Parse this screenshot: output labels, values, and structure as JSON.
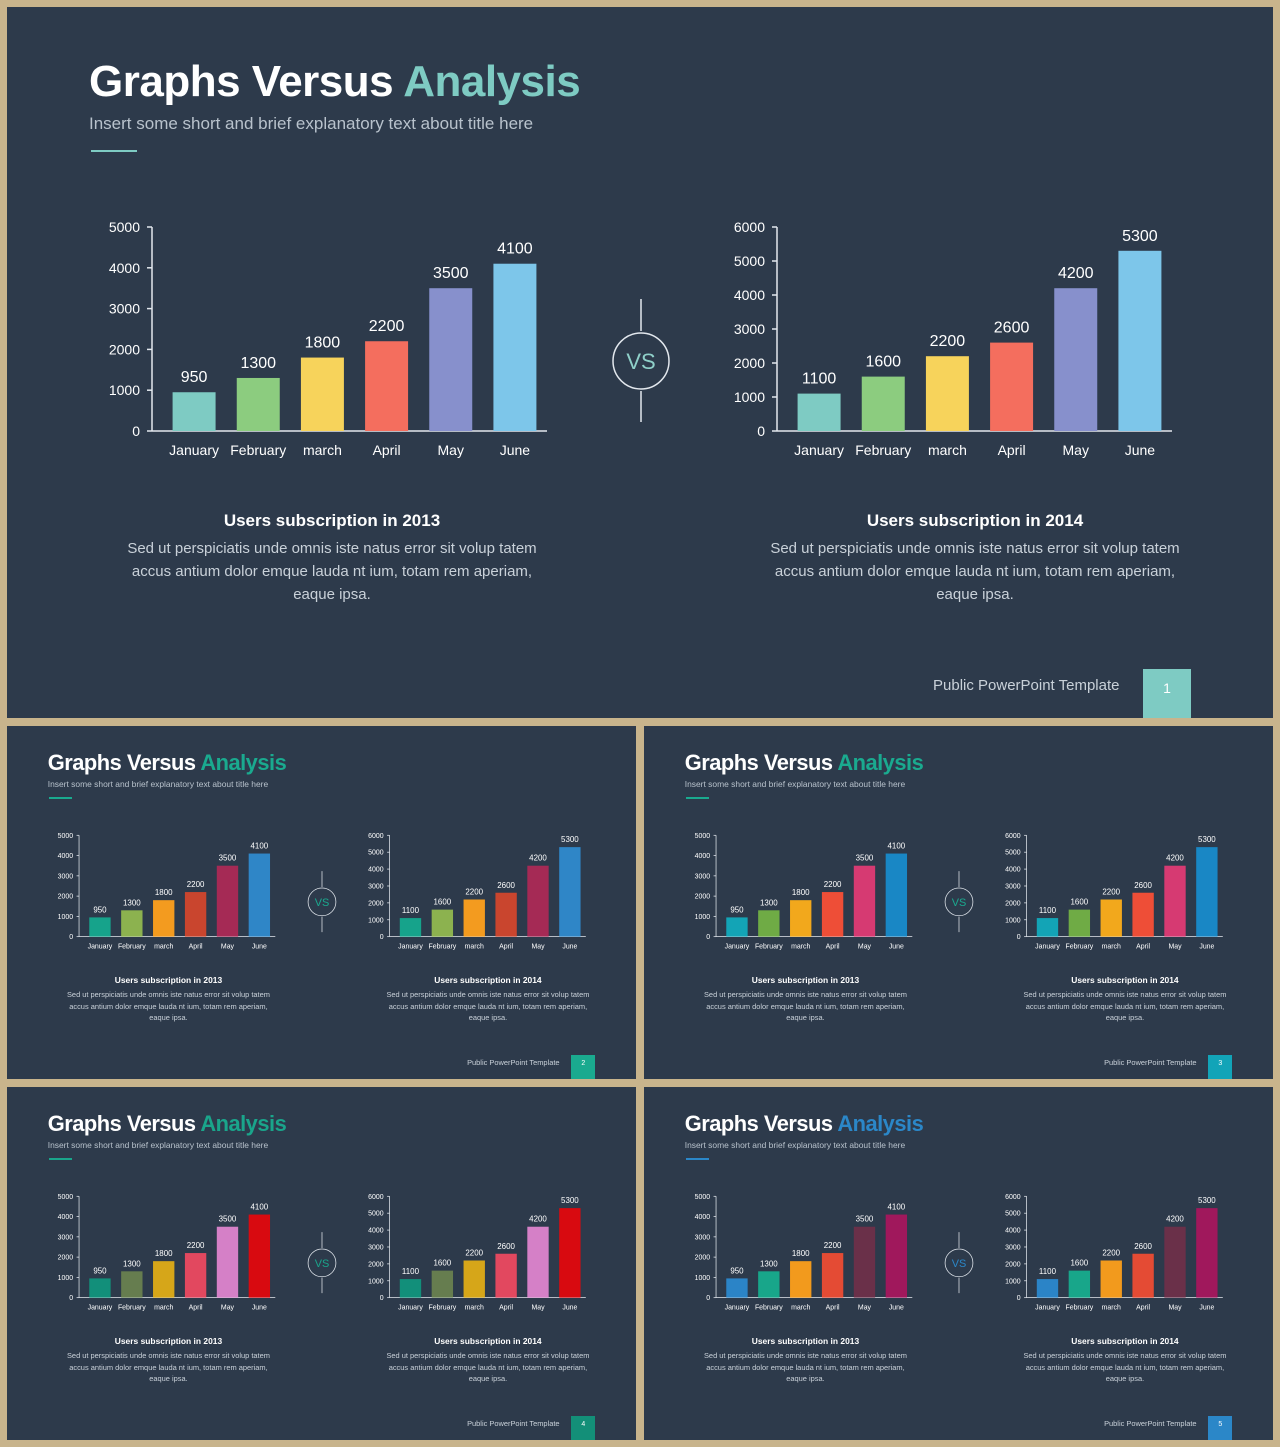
{
  "title_main": "Graphs Versus",
  "title_accent": "Analysis",
  "subtitle": "Insert some short and brief explanatory text about title here",
  "vs_label": "VS",
  "footer": "Public PowerPoint Template",
  "caption_left": {
    "heading": "Users subscription in 2013",
    "body": "Sed ut perspiciatis unde omnis iste natus error sit volup tatem accus antium dolor emque lauda nt ium, totam rem aperiam, eaque ipsa."
  },
  "caption_right": {
    "heading": "Users subscription in 2014",
    "body": "Sed ut perspiciatis unde omnis iste natus error sit volup tatem accus antium dolor emque lauda nt ium, totam rem aperiam, eaque ipsa."
  },
  "chart_data": [
    {
      "type": "bar",
      "categories": [
        "January",
        "February",
        "march",
        "April",
        "May",
        "June"
      ],
      "values": [
        950,
        1300,
        1800,
        2200,
        3500,
        4100
      ],
      "ylim": [
        0,
        5000
      ],
      "yticks": [
        0,
        1000,
        2000,
        3000,
        4000,
        5000
      ],
      "data_labels": true,
      "grid": false
    },
    {
      "type": "bar",
      "categories": [
        "January",
        "February",
        "march",
        "April",
        "May",
        "June"
      ],
      "values": [
        1100,
        1600,
        2200,
        2600,
        4200,
        5300
      ],
      "ylim": [
        0,
        6000
      ],
      "yticks": [
        0,
        1000,
        2000,
        3000,
        4000,
        5000,
        6000
      ],
      "data_labels": true,
      "grid": false
    }
  ],
  "slides": [
    {
      "page": "1",
      "accent": "#7ecbc3",
      "box": "#7ecbc3",
      "vs_color": "#8fd0c9",
      "bar_colors": [
        "#7ecbc3",
        "#8ccc7f",
        "#f7d35b",
        "#f46e5e",
        "#8790cc",
        "#7dc6ea"
      ]
    },
    {
      "page": "2",
      "accent": "#1aaa8f",
      "box": "#1aaa8f",
      "vs_color": "#1aaa8f",
      "bar_colors": [
        "#16a38b",
        "#8cb24f",
        "#f39b1f",
        "#c9452e",
        "#a52a55",
        "#2f86c7"
      ]
    },
    {
      "page": "3",
      "accent": "#1aaa8f",
      "box": "#12a4b8",
      "vs_color": "#1aaa8f",
      "bar_colors": [
        "#13a4b6",
        "#6fab45",
        "#f2a81c",
        "#ee4e37",
        "#d63a72",
        "#1987c5"
      ]
    },
    {
      "page": "4",
      "accent": "#1aa58b",
      "box": "#138f78",
      "vs_color": "#1aa58b",
      "bar_colors": [
        "#128f7a",
        "#667d4f",
        "#d6a619",
        "#e2485f",
        "#d580c7",
        "#d80a10"
      ]
    },
    {
      "page": "5",
      "accent": "#2b87c8",
      "box": "#2b87c8",
      "vs_color": "#2b87c8",
      "bar_colors": [
        "#2b84c7",
        "#18a68a",
        "#f29a1d",
        "#e44b34",
        "#6a3049",
        "#a0185c"
      ]
    }
  ]
}
